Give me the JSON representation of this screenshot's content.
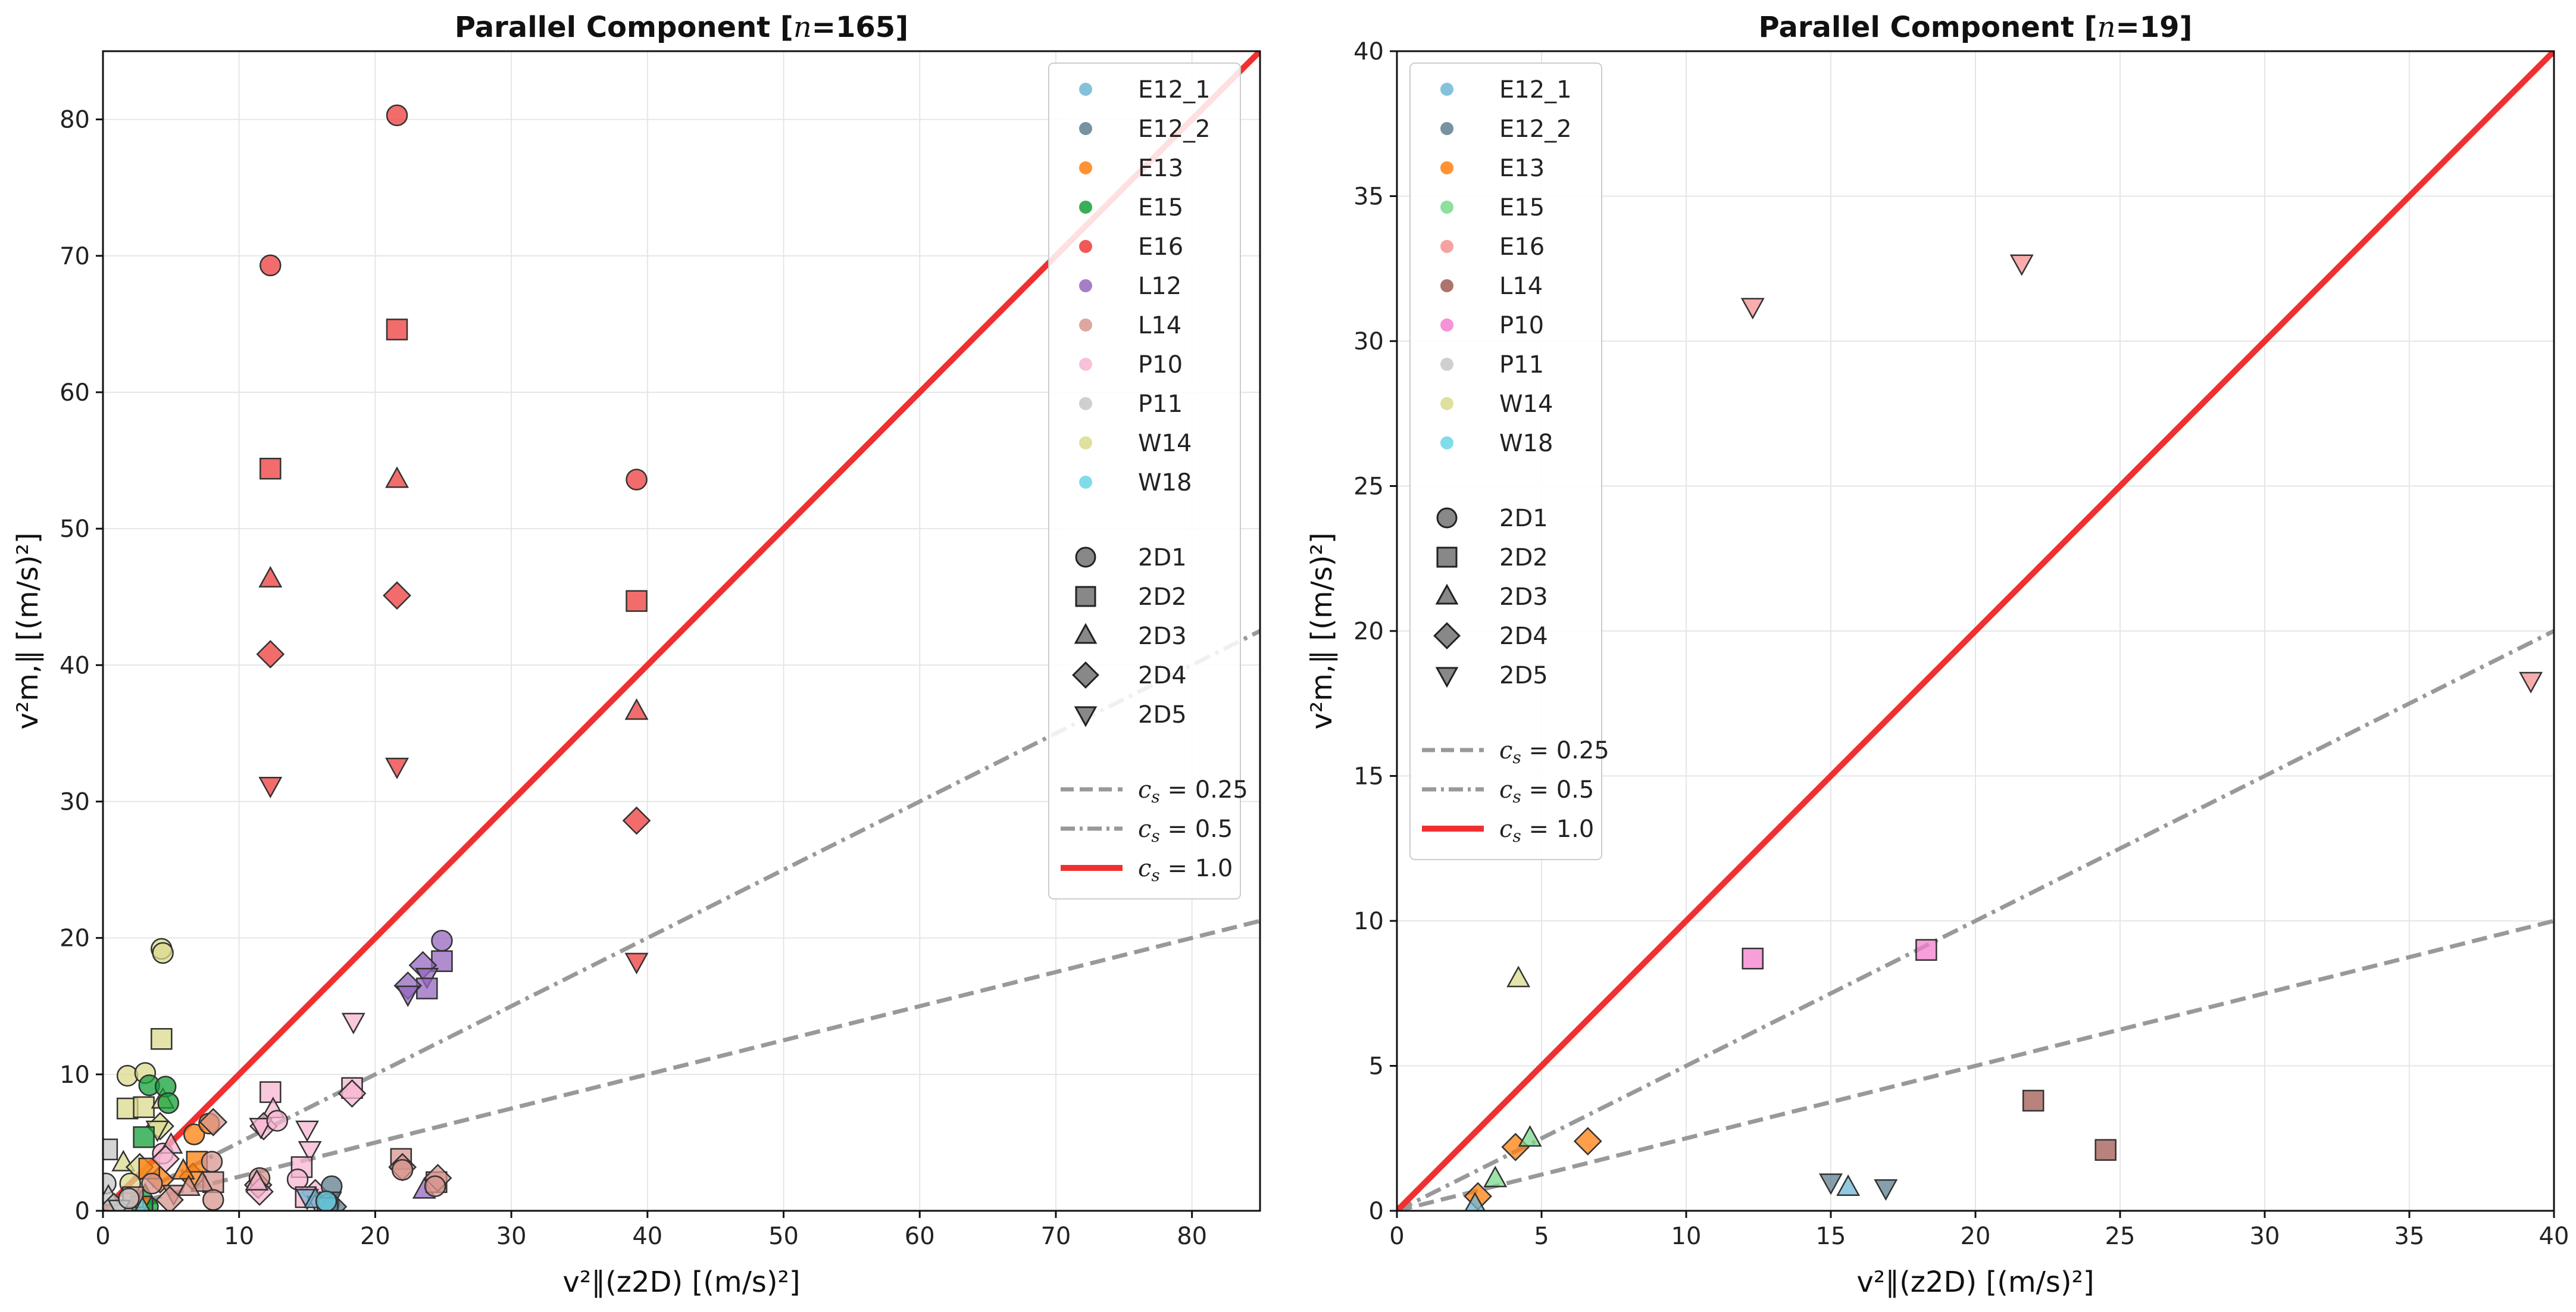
{
  "chart_data": [
    {
      "type": "scatter",
      "title": "Parallel Component [n=165]",
      "title_parts": {
        "prefix": "Parallel Component [",
        "var": "n",
        "suffix": "=165]"
      },
      "xlabel": "v²∥(z2D) [(m/s)²]",
      "ylabel": "v²m,∥ [(m/s)²]",
      "xlim": [
        0,
        85
      ],
      "ylim": [
        0,
        85
      ],
      "xticks": [
        0,
        10,
        20,
        30,
        40,
        50,
        60,
        70,
        80
      ],
      "yticks": [
        0,
        10,
        20,
        30,
        40,
        50,
        60,
        70,
        80
      ],
      "grid": true,
      "legend_location": "top-right",
      "legend_series": [
        {
          "label": "E12_1",
          "color": "#6fb7d6"
        },
        {
          "label": "E12_2",
          "color": "#5f7f8f"
        },
        {
          "label": "E13",
          "color": "#ff7f0e"
        },
        {
          "label": "E15",
          "color": "#14a03a"
        },
        {
          "label": "E16",
          "color": "#ef3b3b"
        },
        {
          "label": "L12",
          "color": "#9467bd"
        },
        {
          "label": "L14",
          "color": "#d8968f"
        },
        {
          "label": "P10",
          "color": "#f7b6d2"
        },
        {
          "label": "P11",
          "color": "#c7c7c7"
        },
        {
          "label": "W14",
          "color": "#dbdb8d"
        },
        {
          "label": "W18",
          "color": "#6ad6e8"
        }
      ],
      "legend_markers": [
        {
          "label": "2D1",
          "shape": "circle"
        },
        {
          "label": "2D2",
          "shape": "square"
        },
        {
          "label": "2D3",
          "shape": "triangle-up"
        },
        {
          "label": "2D4",
          "shape": "diamond"
        },
        {
          "label": "2D5",
          "shape": "triangle-down"
        }
      ],
      "legend_lines": [
        {
          "label": "c_s = 0.25",
          "math": "c",
          "sub": "s",
          "rest": " = 0.25",
          "slope": 0.25,
          "style": "dashed",
          "color": "#999999"
        },
        {
          "label": "c_s = 0.5",
          "math": "c",
          "sub": "s",
          "rest": " = 0.5",
          "slope": 0.5,
          "style": "dashdot",
          "color": "#999999"
        },
        {
          "label": "c_s = 1.0",
          "math": "c",
          "sub": "s",
          "rest": " = 1.0",
          "slope": 1.0,
          "style": "solid",
          "color": "#f03030"
        }
      ],
      "points": [
        {
          "s": "E16",
          "m": "circle",
          "x": 21.6,
          "y": 80.3
        },
        {
          "s": "E16",
          "m": "circle",
          "x": 12.3,
          "y": 69.3
        },
        {
          "s": "E16",
          "m": "circle",
          "x": 39.2,
          "y": 53.6
        },
        {
          "s": "E16",
          "m": "square",
          "x": 21.6,
          "y": 64.6
        },
        {
          "s": "E16",
          "m": "square",
          "x": 12.3,
          "y": 54.4
        },
        {
          "s": "E16",
          "m": "square",
          "x": 39.2,
          "y": 44.7
        },
        {
          "s": "E16",
          "m": "triangle-up",
          "x": 21.6,
          "y": 53.6
        },
        {
          "s": "E16",
          "m": "triangle-up",
          "x": 12.3,
          "y": 46.3
        },
        {
          "s": "E16",
          "m": "triangle-up",
          "x": 39.2,
          "y": 36.6
        },
        {
          "s": "E16",
          "m": "diamond",
          "x": 21.6,
          "y": 45.1
        },
        {
          "s": "E16",
          "m": "diamond",
          "x": 12.3,
          "y": 40.8
        },
        {
          "s": "E16",
          "m": "diamond",
          "x": 39.2,
          "y": 28.6
        },
        {
          "s": "E16",
          "m": "triangle-down",
          "x": 21.6,
          "y": 32.6
        },
        {
          "s": "E16",
          "m": "triangle-down",
          "x": 12.3,
          "y": 31.2
        },
        {
          "s": "E16",
          "m": "triangle-down",
          "x": 39.2,
          "y": 18.3
        },
        {
          "s": "L12",
          "m": "circle",
          "x": 24.9,
          "y": 19.8
        },
        {
          "s": "L12",
          "m": "square",
          "x": 24.9,
          "y": 18.3
        },
        {
          "s": "L12",
          "m": "diamond",
          "x": 23.5,
          "y": 18.0
        },
        {
          "s": "L12",
          "m": "triangle-down",
          "x": 23.8,
          "y": 17.2
        },
        {
          "s": "L12",
          "m": "square",
          "x": 23.8,
          "y": 16.3
        },
        {
          "s": "L12",
          "m": "diamond",
          "x": 22.4,
          "y": 16.5
        },
        {
          "s": "L12",
          "m": "triangle-down",
          "x": 22.4,
          "y": 15.9
        },
        {
          "s": "L12",
          "m": "triangle-up",
          "x": 23.6,
          "y": 1.5
        },
        {
          "s": "W14",
          "m": "circle",
          "x": 4.3,
          "y": 19.2
        },
        {
          "s": "W14",
          "m": "circle",
          "x": 4.4,
          "y": 18.9
        },
        {
          "s": "W14",
          "m": "square",
          "x": 4.3,
          "y": 12.6
        },
        {
          "s": "W14",
          "m": "circle",
          "x": 1.8,
          "y": 9.9
        },
        {
          "s": "W14",
          "m": "circle",
          "x": 3.1,
          "y": 10.1
        },
        {
          "s": "W14",
          "m": "square",
          "x": 1.8,
          "y": 7.5
        },
        {
          "s": "W14",
          "m": "square",
          "x": 3.0,
          "y": 7.6
        },
        {
          "s": "W14",
          "m": "triangle-up",
          "x": 4.4,
          "y": 8.1
        },
        {
          "s": "W14",
          "m": "diamond",
          "x": 4.2,
          "y": 6.2
        },
        {
          "s": "W14",
          "m": "triangle-down",
          "x": 4.0,
          "y": 6.0
        },
        {
          "s": "W14",
          "m": "triangle-up",
          "x": 1.5,
          "y": 3.5
        },
        {
          "s": "W14",
          "m": "diamond",
          "x": 2.7,
          "y": 3.2
        },
        {
          "s": "W14",
          "m": "circle",
          "x": 2.0,
          "y": 2.0
        },
        {
          "s": "E15",
          "m": "circle",
          "x": 3.4,
          "y": 9.2
        },
        {
          "s": "E15",
          "m": "circle",
          "x": 4.6,
          "y": 9.1
        },
        {
          "s": "E15",
          "m": "circle",
          "x": 4.8,
          "y": 7.9
        },
        {
          "s": "E15",
          "m": "square",
          "x": 3.0,
          "y": 5.4
        },
        {
          "s": "E15",
          "m": "triangle-up",
          "x": 3.1,
          "y": 1.1
        },
        {
          "s": "E15",
          "m": "circle",
          "x": 3.3,
          "y": 0.3
        },
        {
          "s": "E15",
          "m": "square",
          "x": 2.9,
          "y": 0.2
        },
        {
          "s": "E13",
          "m": "circle",
          "x": 6.7,
          "y": 5.6
        },
        {
          "s": "E13",
          "m": "diamond",
          "x": 6.6,
          "y": 2.5
        },
        {
          "s": "E13",
          "m": "square",
          "x": 6.9,
          "y": 3.6
        },
        {
          "s": "E13",
          "m": "triangle-up",
          "x": 5.9,
          "y": 2.9
        },
        {
          "s": "E13",
          "m": "diamond",
          "x": 4.2,
          "y": 2.3
        },
        {
          "s": "E13",
          "m": "square",
          "x": 3.4,
          "y": 3.1
        },
        {
          "s": "E13",
          "m": "triangle-down",
          "x": 2.8,
          "y": 0.5
        },
        {
          "s": "E13",
          "m": "circle",
          "x": 7.8,
          "y": 6.4
        },
        {
          "s": "L14",
          "m": "diamond",
          "x": 8.1,
          "y": 6.5
        },
        {
          "s": "L14",
          "m": "circle",
          "x": 8.0,
          "y": 3.6
        },
        {
          "s": "L14",
          "m": "square",
          "x": 8.1,
          "y": 2.1
        },
        {
          "s": "L14",
          "m": "triangle-up",
          "x": 7.3,
          "y": 2.0
        },
        {
          "s": "L14",
          "m": "diamond",
          "x": 11.4,
          "y": 1.9
        },
        {
          "s": "L14",
          "m": "circle",
          "x": 11.5,
          "y": 2.4
        },
        {
          "s": "L14",
          "m": "square",
          "x": 21.9,
          "y": 3.8
        },
        {
          "s": "L14",
          "m": "diamond",
          "x": 22.0,
          "y": 3.2
        },
        {
          "s": "L14",
          "m": "circle",
          "x": 22.0,
          "y": 3.0
        },
        {
          "s": "L14",
          "m": "square",
          "x": 24.5,
          "y": 2.1
        },
        {
          "s": "L14",
          "m": "diamond",
          "x": 24.6,
          "y": 2.4
        },
        {
          "s": "L14",
          "m": "circle",
          "x": 24.4,
          "y": 1.8
        },
        {
          "s": "L14",
          "m": "triangle-down",
          "x": 5.2,
          "y": 1.3
        },
        {
          "s": "L14",
          "m": "circle",
          "x": 3.6,
          "y": 2.0
        },
        {
          "s": "L14",
          "m": "diamond",
          "x": 4.9,
          "y": 0.8
        },
        {
          "s": "L14",
          "m": "square",
          "x": 2.2,
          "y": 1.0
        },
        {
          "s": "L14",
          "m": "circle",
          "x": 8.1,
          "y": 0.8
        },
        {
          "s": "L14",
          "m": "triangle-up",
          "x": 6.3,
          "y": 1.7
        },
        {
          "s": "P10",
          "m": "square",
          "x": 12.3,
          "y": 8.7
        },
        {
          "s": "P10",
          "m": "square",
          "x": 18.3,
          "y": 9.0
        },
        {
          "s": "P10",
          "m": "diamond",
          "x": 18.3,
          "y": 8.6
        },
        {
          "s": "P10",
          "m": "triangle-down",
          "x": 18.4,
          "y": 13.9
        },
        {
          "s": "P10",
          "m": "triangle-up",
          "x": 12.5,
          "y": 7.4
        },
        {
          "s": "P10",
          "m": "diamond",
          "x": 11.8,
          "y": 6.2
        },
        {
          "s": "P10",
          "m": "triangle-down",
          "x": 11.6,
          "y": 6.2
        },
        {
          "s": "P10",
          "m": "circle",
          "x": 12.8,
          "y": 6.6
        },
        {
          "s": "P10",
          "m": "triangle-down",
          "x": 15.0,
          "y": 6.0
        },
        {
          "s": "P10",
          "m": "triangle-down",
          "x": 15.2,
          "y": 4.5
        },
        {
          "s": "P10",
          "m": "square",
          "x": 14.6,
          "y": 3.2
        },
        {
          "s": "P10",
          "m": "circle",
          "x": 14.3,
          "y": 2.3
        },
        {
          "s": "P10",
          "m": "diamond",
          "x": 11.5,
          "y": 1.4
        },
        {
          "s": "P10",
          "m": "triangle-up",
          "x": 11.3,
          "y": 2.1
        },
        {
          "s": "P10",
          "m": "diamond",
          "x": 15.6,
          "y": 1.3
        },
        {
          "s": "P10",
          "m": "square",
          "x": 14.9,
          "y": 1.0
        },
        {
          "s": "P10",
          "m": "triangle-down",
          "x": 15.8,
          "y": 0.5
        },
        {
          "s": "P10",
          "m": "circle",
          "x": 4.4,
          "y": 4.2
        },
        {
          "s": "P10",
          "m": "triangle-up",
          "x": 5.0,
          "y": 4.8
        },
        {
          "s": "P10",
          "m": "diamond",
          "x": 4.6,
          "y": 3.8
        },
        {
          "s": "P11",
          "m": "square",
          "x": 0.3,
          "y": 4.5
        },
        {
          "s": "P11",
          "m": "circle",
          "x": 0.2,
          "y": 2.0
        },
        {
          "s": "P11",
          "m": "triangle-up",
          "x": 0.4,
          "y": 1.0
        },
        {
          "s": "P11",
          "m": "diamond",
          "x": 0.8,
          "y": 0.3
        },
        {
          "s": "P11",
          "m": "triangle-down",
          "x": 1.2,
          "y": 0.2
        },
        {
          "s": "P11",
          "m": "circle",
          "x": 1.9,
          "y": 0.9
        },
        {
          "s": "E12_1",
          "m": "triangle-down",
          "x": 15.0,
          "y": 1.0
        },
        {
          "s": "E12_1",
          "m": "triangle-up",
          "x": 15.6,
          "y": 0.8
        },
        {
          "s": "E12_2",
          "m": "circle",
          "x": 16.8,
          "y": 1.8
        },
        {
          "s": "E12_2",
          "m": "triangle-down",
          "x": 16.7,
          "y": 0.8
        },
        {
          "s": "E12_2",
          "m": "circle",
          "x": 16.6,
          "y": 0.5
        },
        {
          "s": "E12_2",
          "m": "diamond",
          "x": 16.9,
          "y": 0.3
        },
        {
          "s": "E12_2",
          "m": "square",
          "x": 16.5,
          "y": 0.2
        },
        {
          "s": "W18",
          "m": "circle",
          "x": 16.4,
          "y": 0.7
        },
        {
          "s": "W18",
          "m": "triangle-up",
          "x": 2.9,
          "y": 0.1
        }
      ]
    },
    {
      "type": "scatter",
      "title": "Parallel Component [n=19]",
      "title_parts": {
        "prefix": "Parallel Component [",
        "var": "n",
        "suffix": "=19]"
      },
      "xlabel": "v²∥(z2D) [(m/s)²]",
      "ylabel": "v²m,∥ [(m/s)²]",
      "xlim": [
        0,
        40
      ],
      "ylim": [
        0,
        40
      ],
      "xticks": [
        0,
        5,
        10,
        15,
        20,
        25,
        30,
        35,
        40
      ],
      "yticks": [
        0,
        5,
        10,
        15,
        20,
        25,
        30,
        35,
        40
      ],
      "grid": true,
      "legend_location": "top-left",
      "legend_series": [
        {
          "label": "E12_1",
          "color": "#6fb7d6"
        },
        {
          "label": "E12_2",
          "color": "#5f7f8f"
        },
        {
          "label": "E13",
          "color": "#ff7f0e"
        },
        {
          "label": "E15",
          "color": "#7bd98d"
        },
        {
          "label": "E16",
          "color": "#f59292"
        },
        {
          "label": "L14",
          "color": "#a05a52"
        },
        {
          "label": "P10",
          "color": "#f47fce"
        },
        {
          "label": "P11",
          "color": "#c7c7c7"
        },
        {
          "label": "W14",
          "color": "#dbdb8d"
        },
        {
          "label": "W18",
          "color": "#6ad6e8"
        }
      ],
      "legend_markers": [
        {
          "label": "2D1",
          "shape": "circle"
        },
        {
          "label": "2D2",
          "shape": "square"
        },
        {
          "label": "2D3",
          "shape": "triangle-up"
        },
        {
          "label": "2D4",
          "shape": "diamond"
        },
        {
          "label": "2D5",
          "shape": "triangle-down"
        }
      ],
      "legend_lines": [
        {
          "label": "c_s = 0.25",
          "math": "c",
          "sub": "s",
          "rest": " = 0.25",
          "slope": 0.25,
          "style": "dashed",
          "color": "#999999"
        },
        {
          "label": "c_s = 0.5",
          "math": "c",
          "sub": "s",
          "rest": " = 0.5",
          "slope": 0.5,
          "style": "dashdot",
          "color": "#999999"
        },
        {
          "label": "c_s = 1.0",
          "math": "c",
          "sub": "s",
          "rest": " = 1.0",
          "slope": 1.0,
          "style": "solid",
          "color": "#f03030"
        }
      ],
      "points": [
        {
          "s": "E16",
          "m": "triangle-down",
          "x": 21.6,
          "y": 32.7
        },
        {
          "s": "E16",
          "m": "triangle-down",
          "x": 12.3,
          "y": 31.2
        },
        {
          "s": "E16",
          "m": "triangle-down",
          "x": 39.2,
          "y": 18.3
        },
        {
          "s": "P10",
          "m": "square",
          "x": 12.3,
          "y": 8.7
        },
        {
          "s": "P10",
          "m": "square",
          "x": 18.3,
          "y": 9.0
        },
        {
          "s": "W14",
          "m": "triangle-up",
          "x": 4.2,
          "y": 8.0
        },
        {
          "s": "E13",
          "m": "diamond",
          "x": 4.1,
          "y": 2.2
        },
        {
          "s": "E13",
          "m": "diamond",
          "x": 6.6,
          "y": 2.4
        },
        {
          "s": "E13",
          "m": "diamond",
          "x": 2.8,
          "y": 0.5
        },
        {
          "s": "E15",
          "m": "triangle-up",
          "x": 4.6,
          "y": 2.5
        },
        {
          "s": "E15",
          "m": "triangle-up",
          "x": 3.4,
          "y": 1.1
        },
        {
          "s": "L14",
          "m": "square",
          "x": 22.0,
          "y": 3.8
        },
        {
          "s": "L14",
          "m": "square",
          "x": 24.5,
          "y": 2.1
        },
        {
          "s": "E12_1",
          "m": "triangle-up",
          "x": 15.6,
          "y": 0.8
        },
        {
          "s": "E12_1",
          "m": "triangle-up",
          "x": 2.7,
          "y": 0.2
        },
        {
          "s": "E12_2",
          "m": "triangle-down",
          "x": 15.0,
          "y": 1.0
        },
        {
          "s": "E12_2",
          "m": "triangle-down",
          "x": 16.9,
          "y": 0.8
        }
      ]
    }
  ]
}
